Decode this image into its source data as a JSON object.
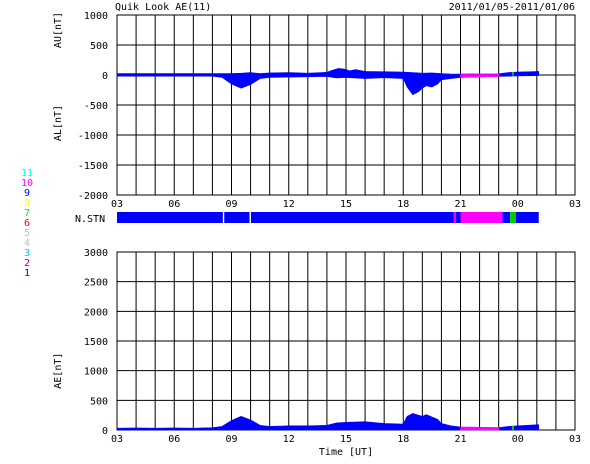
{
  "header": {
    "title": "Quik Look AE(11)",
    "date_range": "2011/01/05-2011/01/06"
  },
  "colors": {
    "trace_main": "#0000ff",
    "trace_late_magenta": "#ff00ff",
    "trace_late_green": "#00cc00",
    "trace_late_purple": "#9900ff",
    "grid": "#000000",
    "background": "#ffffff"
  },
  "station_legend": [
    {
      "label": "11",
      "color": "#00ffff"
    },
    {
      "label": "10",
      "color": "#ff00ff"
    },
    {
      "label": "9",
      "color": "#0000ff"
    },
    {
      "label": "8",
      "color": "#ffff00"
    },
    {
      "label": "7",
      "color": "#00ff00"
    },
    {
      "label": "6",
      "color": "#ff0000"
    },
    {
      "label": "5",
      "color": "#c0c0c0"
    },
    {
      "label": "4",
      "color": "#c0c0c0"
    },
    {
      "label": "3",
      "color": "#00cccc"
    },
    {
      "label": "2",
      "color": "#aa00aa"
    },
    {
      "label": "1",
      "color": "#0000cc"
    }
  ],
  "station_bar": {
    "label": "N.STN",
    "segments": [
      {
        "from": 0.0,
        "to": 5.55,
        "color": "#0000ff"
      },
      {
        "from": 5.55,
        "to": 5.62,
        "color": "#ffffff"
      },
      {
        "from": 5.62,
        "to": 6.95,
        "color": "#0000ff"
      },
      {
        "from": 6.95,
        "to": 7.02,
        "color": "#ffffff"
      },
      {
        "from": 7.02,
        "to": 17.65,
        "color": "#0000ff"
      },
      {
        "from": 17.65,
        "to": 17.75,
        "color": "#ff00ff"
      },
      {
        "from": 17.75,
        "to": 18.0,
        "color": "#0000ff"
      },
      {
        "from": 18.0,
        "to": 20.2,
        "color": "#ff00ff"
      },
      {
        "from": 20.2,
        "to": 20.6,
        "color": "#0000ff"
      },
      {
        "from": 20.6,
        "to": 20.9,
        "color": "#00cc00"
      },
      {
        "from": 20.9,
        "to": 22.1,
        "color": "#0000ff"
      }
    ]
  },
  "chart_data": [
    {
      "type": "area",
      "panel": "AU/AL",
      "ylabel_top": "AU[nT]",
      "ylabel_bottom": "AL[nT]",
      "xlim": [
        0,
        24
      ],
      "ylim": [
        -2000,
        1000
      ],
      "yticks": [
        1000,
        500,
        0,
        -500,
        -1000,
        -1500,
        -2000
      ],
      "xticks": [
        0,
        3,
        6,
        9,
        12,
        15,
        18,
        21,
        24
      ],
      "xtick_labels": [
        "03",
        "06",
        "09",
        "12",
        "15",
        "18",
        "21",
        "00",
        "03"
      ],
      "grid": true,
      "series": [
        {
          "role": "AU",
          "x": [
            0,
            1,
            2,
            3,
            4,
            5,
            6,
            6.5,
            7,
            7.5,
            8,
            9,
            10,
            11,
            11.3,
            11.6,
            11.9,
            12.2,
            12.5,
            13,
            14,
            15,
            15.5,
            16,
            16.5,
            17,
            17.5,
            18,
            19,
            20,
            20.5,
            21,
            22.1
          ],
          "y": [
            25,
            25,
            25,
            25,
            25,
            25,
            25,
            30,
            40,
            25,
            35,
            40,
            30,
            45,
            80,
            110,
            100,
            70,
            90,
            60,
            55,
            50,
            40,
            30,
            35,
            25,
            15,
            15,
            20,
            20,
            40,
            50,
            60
          ]
        },
        {
          "role": "AL",
          "x": [
            0,
            1,
            2,
            3,
            4,
            5,
            5.5,
            6,
            6.5,
            7,
            7.5,
            8,
            9,
            10,
            11,
            11.5,
            12,
            13,
            14,
            15,
            15.2,
            15.5,
            15.8,
            16,
            16.2,
            16.5,
            16.8,
            17,
            17.5,
            18,
            19,
            20,
            20.5,
            21,
            22.1
          ],
          "y": [
            -20,
            -20,
            -20,
            -20,
            -20,
            -20,
            -40,
            -150,
            -220,
            -160,
            -60,
            -40,
            -35,
            -30,
            -25,
            -50,
            -40,
            -60,
            -45,
            -60,
            -200,
            -330,
            -280,
            -220,
            -180,
            -200,
            -150,
            -80,
            -60,
            -40,
            -30,
            -25,
            -20,
            -15,
            -10
          ]
        }
      ]
    },
    {
      "type": "area",
      "panel": "AE",
      "ylabel": "AE[nT]",
      "xlabel": "Time [UT]",
      "xlim": [
        0,
        24
      ],
      "ylim": [
        0,
        3000
      ],
      "yticks": [
        3000,
        2500,
        2000,
        1500,
        1000,
        500,
        0
      ],
      "xticks": [
        0,
        3,
        6,
        9,
        12,
        15,
        18,
        21,
        24
      ],
      "xtick_labels": [
        "03",
        "06",
        "09",
        "12",
        "15",
        "18",
        "21",
        "00",
        "03"
      ],
      "grid": true,
      "series": [
        {
          "role": "AE",
          "x": [
            0,
            1,
            2,
            3,
            4,
            5,
            5.5,
            6,
            6.5,
            7,
            7.5,
            8,
            9,
            10,
            11,
            11.5,
            12,
            13,
            14,
            15,
            15.2,
            15.5,
            15.8,
            16,
            16.2,
            16.5,
            16.8,
            17,
            17.5,
            18,
            19,
            20,
            20.5,
            21,
            22.1
          ],
          "y": [
            30,
            35,
            30,
            35,
            30,
            40,
            60,
            160,
            230,
            170,
            80,
            60,
            70,
            70,
            80,
            120,
            130,
            140,
            110,
            100,
            230,
            280,
            250,
            230,
            260,
            220,
            180,
            110,
            70,
            50,
            45,
            40,
            60,
            70,
            90
          ]
        }
      ]
    }
  ]
}
